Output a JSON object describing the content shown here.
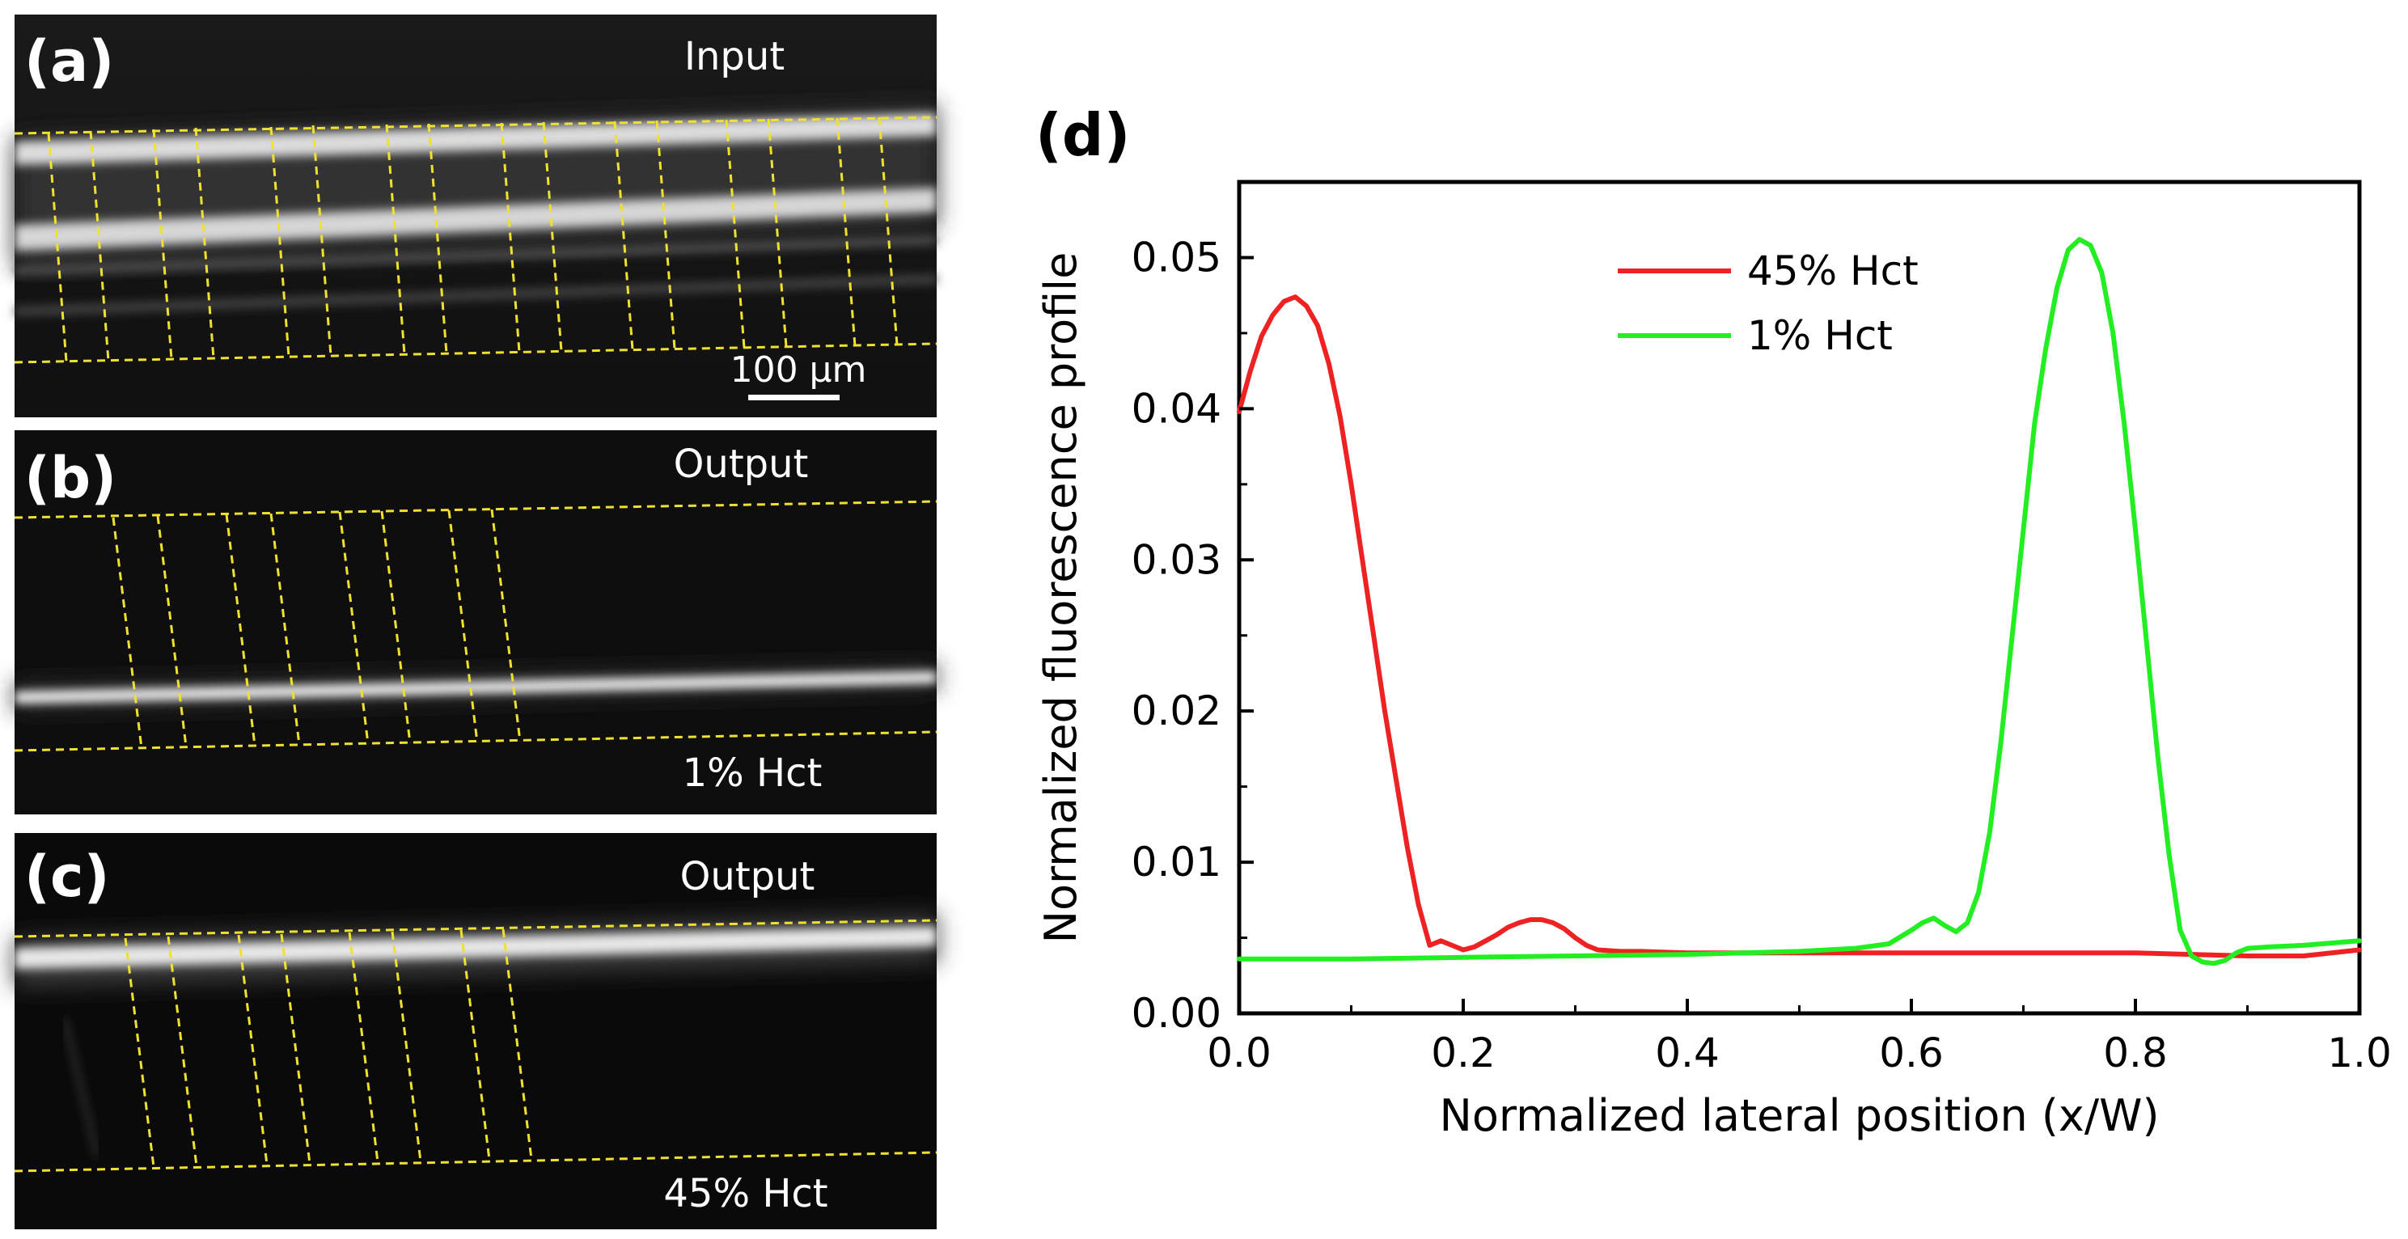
{
  "panels": {
    "a": {
      "letter": "(a)",
      "label": "Input",
      "scale_bar": "100 µm"
    },
    "b": {
      "letter": "(b)",
      "label": "Output",
      "sublabel": "1% Hct"
    },
    "c": {
      "letter": "(c)",
      "label": "Output",
      "sublabel": "45% Hct"
    },
    "d": {
      "letter": "(d)"
    }
  },
  "colors": {
    "guide_lines": "#f0e030",
    "series_45": "#ee2222",
    "series_1": "#22ee22"
  },
  "chart_data": {
    "type": "line",
    "title": "",
    "xlabel": "Normalized lateral position (x/W)",
    "ylabel": "Normalized fluorescence profile",
    "xlim": [
      0.0,
      1.0
    ],
    "ylim": [
      0.0,
      0.055
    ],
    "xticks": [
      "0.0",
      "0.2",
      "0.4",
      "0.6",
      "0.8",
      "1.0"
    ],
    "yticks": [
      "0.00",
      "0.01",
      "0.02",
      "0.03",
      "0.04",
      "0.05"
    ],
    "legend_position": "top-center",
    "series": [
      {
        "name": "45% Hct",
        "color": "#ee2222",
        "x": [
          0.0,
          0.01,
          0.02,
          0.03,
          0.04,
          0.05,
          0.06,
          0.07,
          0.08,
          0.09,
          0.1,
          0.11,
          0.12,
          0.13,
          0.14,
          0.15,
          0.16,
          0.17,
          0.18,
          0.19,
          0.2,
          0.21,
          0.22,
          0.23,
          0.24,
          0.25,
          0.26,
          0.27,
          0.28,
          0.29,
          0.3,
          0.31,
          0.32,
          0.34,
          0.36,
          0.4,
          0.5,
          0.6,
          0.7,
          0.8,
          0.85,
          0.9,
          0.95,
          1.0
        ],
        "y": [
          0.0398,
          0.0425,
          0.0448,
          0.0462,
          0.0471,
          0.0474,
          0.0468,
          0.0455,
          0.043,
          0.0395,
          0.035,
          0.03,
          0.025,
          0.02,
          0.0155,
          0.011,
          0.0072,
          0.0045,
          0.0048,
          0.0045,
          0.0042,
          0.0044,
          0.0048,
          0.0052,
          0.0057,
          0.006,
          0.0062,
          0.0062,
          0.006,
          0.0056,
          0.005,
          0.0045,
          0.0042,
          0.0041,
          0.0041,
          0.004,
          0.004,
          0.004,
          0.004,
          0.004,
          0.0039,
          0.0038,
          0.0038,
          0.0042
        ]
      },
      {
        "name": "1% Hct",
        "color": "#22ee22",
        "x": [
          0.0,
          0.1,
          0.2,
          0.3,
          0.4,
          0.5,
          0.55,
          0.58,
          0.6,
          0.61,
          0.62,
          0.63,
          0.64,
          0.65,
          0.66,
          0.67,
          0.68,
          0.69,
          0.7,
          0.71,
          0.72,
          0.73,
          0.74,
          0.75,
          0.76,
          0.77,
          0.78,
          0.79,
          0.8,
          0.81,
          0.82,
          0.83,
          0.84,
          0.85,
          0.86,
          0.87,
          0.88,
          0.89,
          0.9,
          0.92,
          0.95,
          1.0
        ],
        "y": [
          0.0036,
          0.0036,
          0.0037,
          0.0038,
          0.0039,
          0.0041,
          0.0043,
          0.0046,
          0.0055,
          0.006,
          0.0063,
          0.0058,
          0.0054,
          0.006,
          0.008,
          0.012,
          0.018,
          0.025,
          0.032,
          0.039,
          0.044,
          0.048,
          0.0505,
          0.0512,
          0.0508,
          0.049,
          0.045,
          0.039,
          0.032,
          0.0245,
          0.017,
          0.0105,
          0.0055,
          0.0038,
          0.0034,
          0.0033,
          0.0035,
          0.004,
          0.0043,
          0.0044,
          0.0045,
          0.0048
        ]
      }
    ]
  }
}
